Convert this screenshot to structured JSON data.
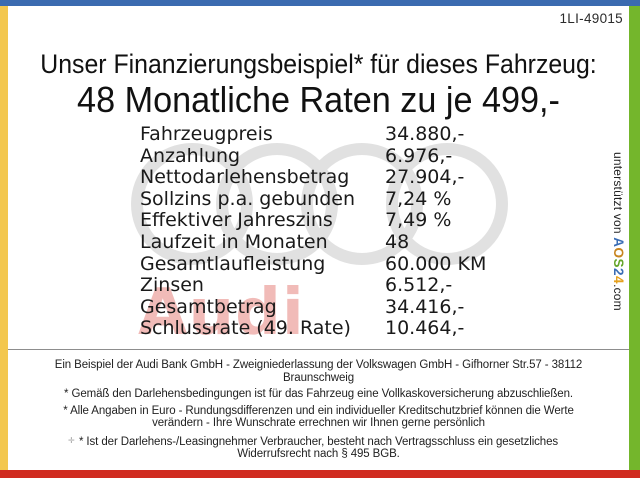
{
  "document": {
    "ref_code": "1LI-49015",
    "title_line1": "Unser Finanzierungsbeispiel* für dieses Fahrzeug:",
    "title_line2": "48 Monatliche Raten zu je 499,-"
  },
  "financing_table": {
    "rows": [
      {
        "label": "Fahrzeugpreis",
        "value": "34.880,-"
      },
      {
        "label": "Anzahlung",
        "value": "6.976,-"
      },
      {
        "label": "Nettodarlehensbetrag",
        "value": "27.904,-"
      },
      {
        "label": "Sollzins p.a. gebunden",
        "value": "7,24 %"
      },
      {
        "label": "Effektiver Jahreszins",
        "value": "7,49 %"
      },
      {
        "label": "Laufzeit in Monaten",
        "value": "48"
      },
      {
        "label": "Gesamtlaufleistung",
        "value": "60.000 KM"
      },
      {
        "label": "Zinsen",
        "value": "6.512,-"
      },
      {
        "label": "Gesamtbetrag",
        "value": "34.416,-"
      },
      {
        "label": "Schlussrate (49. Rate)",
        "value": "10.464,-"
      }
    ]
  },
  "watermark": {
    "brand_text": "Audi",
    "rings_color": "#e1e1e1",
    "brand_text_color": "rgba(213,45,35,0.32)"
  },
  "footer": {
    "line1": "Ein Beispiel der Audi Bank GmbH - Zweigniederlassung der Volkswagen GmbH - Gifhorner Str.57 - 38112 Braunschweig",
    "line2": "* Gemäß den Darlehensbedingungen ist für das Fahrzeug eine Vollkaskoversicherung abzuschließen.",
    "line3": "* Alle Angaben in Euro - Rundungsdifferenzen und ein individueller Kreditschutzbrief können die Werte verändern - Ihre Wunschrate errechnen wir Ihnen gerne persönlich",
    "line4": "* Ist der Darlehens-/Leasingnehmer Verbraucher, besteht nach Vertragsschluss ein gesetzliches Widerrufsrecht nach § 495 BGB."
  },
  "sidebar_vertical": {
    "prefix": "unterstützt von ",
    "brand_letters": [
      {
        "char": "A",
        "color": "#3a6db5"
      },
      {
        "char": "O",
        "color": "#c8851f"
      },
      {
        "char": "S",
        "color": "#64a52a"
      },
      {
        "char": "2",
        "color": "#3a6db5"
      },
      {
        "char": "4",
        "color": "#e5a01e"
      }
    ],
    "suffix": ".com"
  },
  "frame": {
    "top_color": "#3b6bb0",
    "left_color": "#f3c74e",
    "right_color": "#74b62c",
    "bottom_color": "#d02b20"
  }
}
